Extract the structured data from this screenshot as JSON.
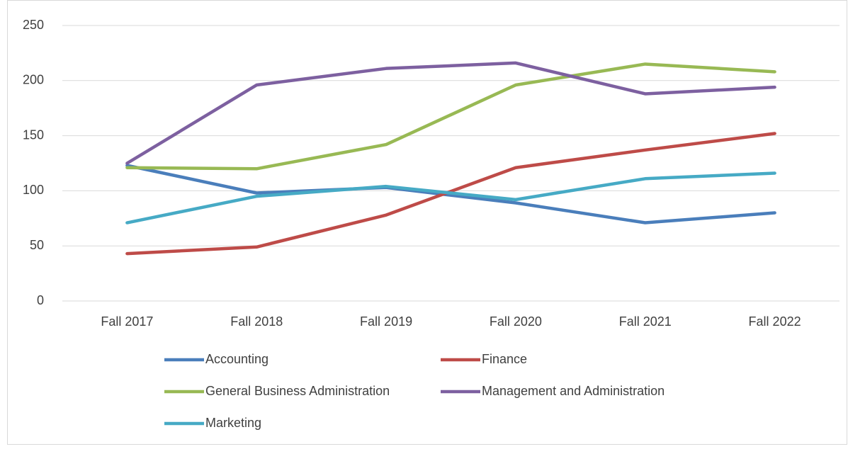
{
  "chart_data": {
    "type": "line",
    "categories": [
      "Fall 2017",
      "Fall 2018",
      "Fall 2019",
      "Fall 2020",
      "Fall 2021",
      "Fall 2022"
    ],
    "series": [
      {
        "name": "Accounting",
        "color": "#4a7ebb",
        "values": [
          123,
          98,
          103,
          89,
          71,
          80
        ]
      },
      {
        "name": "Finance",
        "color": "#be4b48",
        "values": [
          43,
          49,
          78,
          121,
          137,
          152
        ]
      },
      {
        "name": "General Business Administration",
        "color": "#98b954",
        "values": [
          121,
          120,
          142,
          196,
          215,
          208
        ]
      },
      {
        "name": "Management and Administration",
        "color": "#7d60a0",
        "values": [
          125,
          196,
          211,
          216,
          188,
          194
        ]
      },
      {
        "name": "Marketing",
        "color": "#46aac5",
        "values": [
          71,
          95,
          104,
          92,
          111,
          116
        ]
      }
    ],
    "ylim": [
      0,
      250
    ],
    "yticks": [
      0,
      50,
      100,
      150,
      200,
      250
    ],
    "grid": true,
    "legend": "bottom"
  }
}
